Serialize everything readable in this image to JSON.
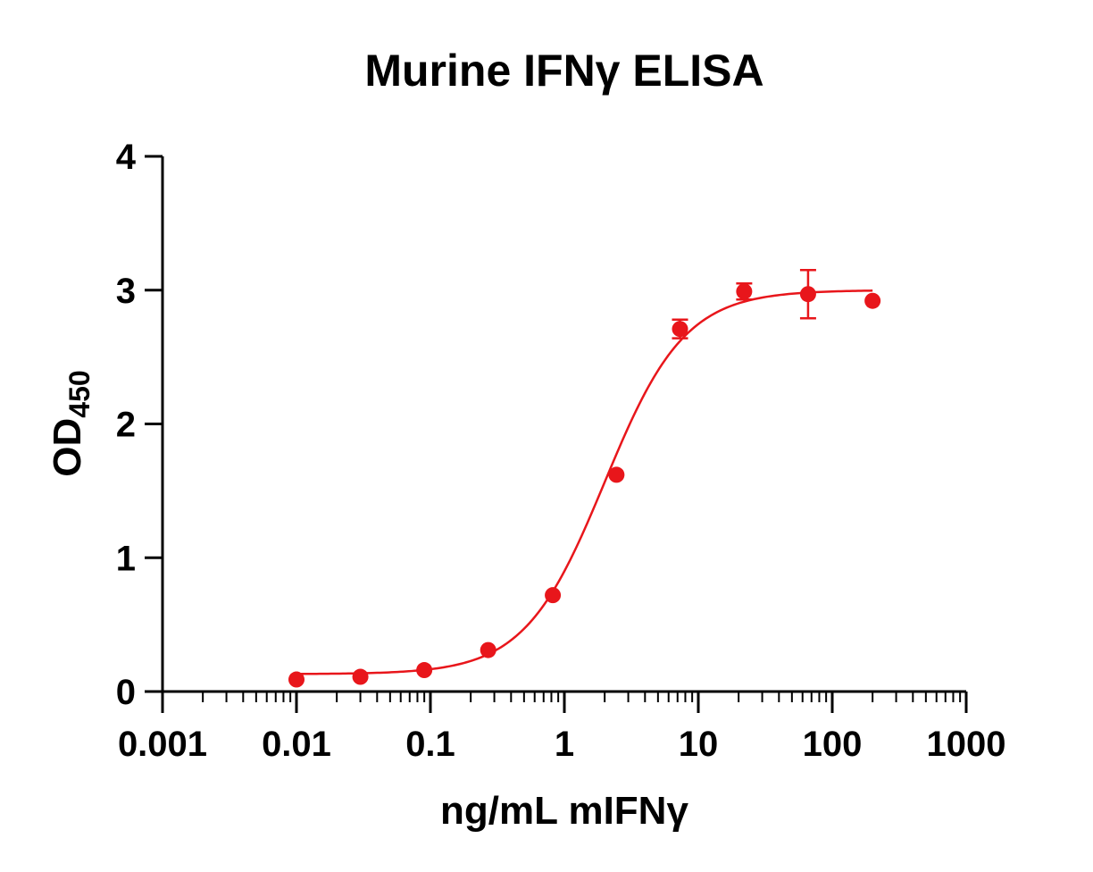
{
  "chart_data": {
    "type": "scatter",
    "title": "Murine IFNγ  ELISA",
    "ylabel_main": "OD",
    "ylabel_sub": "450",
    "xlabel": "ng/mL mIFNγ",
    "x_scale": "log",
    "xlim": [
      0.001,
      1000
    ],
    "ylim": [
      0,
      4
    ],
    "x_ticks": [
      {
        "value": 0.001,
        "label": "0.001"
      },
      {
        "value": 0.01,
        "label": "0.01"
      },
      {
        "value": 0.1,
        "label": "0.1"
      },
      {
        "value": 1,
        "label": "1"
      },
      {
        "value": 10,
        "label": "10"
      },
      {
        "value": 100,
        "label": "100"
      },
      {
        "value": 1000,
        "label": "1000"
      }
    ],
    "y_ticks": [
      {
        "value": 0,
        "label": "0"
      },
      {
        "value": 1,
        "label": "1"
      },
      {
        "value": 2,
        "label": "2"
      },
      {
        "value": 3,
        "label": "3"
      },
      {
        "value": 4,
        "label": "4"
      }
    ],
    "color": "#e8161b",
    "grid": false,
    "series": [
      {
        "points": [
          {
            "x": 0.01,
            "y": 0.09,
            "err": 0
          },
          {
            "x": 0.03,
            "y": 0.11,
            "err": 0
          },
          {
            "x": 0.09,
            "y": 0.16,
            "err": 0
          },
          {
            "x": 0.27,
            "y": 0.31,
            "err": 0
          },
          {
            "x": 0.82,
            "y": 0.72,
            "err": 0
          },
          {
            "x": 2.45,
            "y": 1.62,
            "err": 0
          },
          {
            "x": 7.3,
            "y": 2.71,
            "err": 0.07
          },
          {
            "x": 22,
            "y": 2.99,
            "err": 0.06
          },
          {
            "x": 66,
            "y": 2.97,
            "err": 0.18
          },
          {
            "x": 200,
            "y": 2.92,
            "err": 0
          }
        ],
        "fit": {
          "model": "4PL",
          "bottom": 0.13,
          "top": 3.0,
          "ec50": 2.0,
          "hill": 1.45,
          "x_range": [
            0.01,
            200
          ]
        }
      }
    ]
  }
}
